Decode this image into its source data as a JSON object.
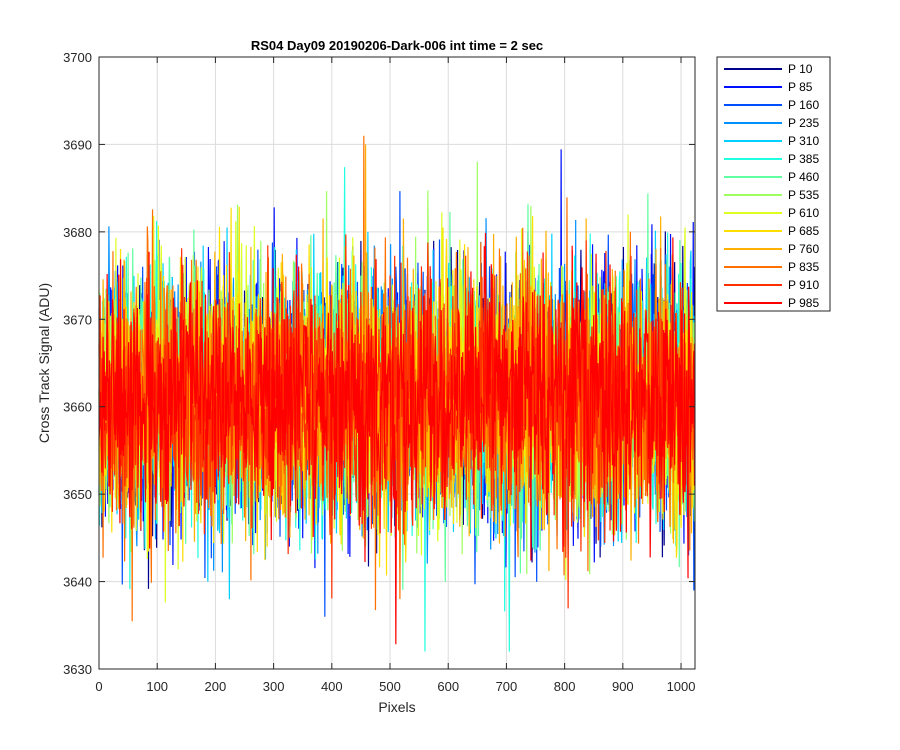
{
  "chart_data": {
    "type": "line",
    "title": "RS04 Day09 20190206-Dark-006 int time = 2 sec",
    "xlabel": "Pixels",
    "ylabel": "Cross Track Signal (ADU)",
    "xlim": [
      0,
      1024
    ],
    "ylim": [
      3630,
      3700
    ],
    "xticks": [
      0,
      100,
      200,
      300,
      400,
      500,
      600,
      700,
      800,
      900,
      1000
    ],
    "yticks": [
      3630,
      3640,
      3650,
      3660,
      3670,
      3680,
      3690,
      3700
    ],
    "grid": true,
    "legend_position": "outside-right",
    "points_per_series": 1024,
    "noise_mean": 3661,
    "noise_sd": 7,
    "series": [
      {
        "name": "P 10",
        "color": "#00008F"
      },
      {
        "name": "P 85",
        "color": "#0010FF"
      },
      {
        "name": "P 160",
        "color": "#0050FF"
      },
      {
        "name": "P 235",
        "color": "#0090FF"
      },
      {
        "name": "P 310",
        "color": "#00CFFF"
      },
      {
        "name": "P 385",
        "color": "#20FFDF"
      },
      {
        "name": "P 460",
        "color": "#60FF9F"
      },
      {
        "name": "P 535",
        "color": "#9FFF60"
      },
      {
        "name": "P 610",
        "color": "#DFFF20"
      },
      {
        "name": "P 685",
        "color": "#FFDF00"
      },
      {
        "name": "P 760",
        "color": "#FFB000"
      },
      {
        "name": "P 835",
        "color": "#FF7000"
      },
      {
        "name": "P 910",
        "color": "#FF3000"
      },
      {
        "name": "P 985",
        "color": "#FF0000"
      }
    ],
    "highlights": [
      {
        "series": "P 835",
        "x": 455,
        "y": 3691
      },
      {
        "series": "P 760",
        "x": 458,
        "y": 3690
      },
      {
        "series": "P 385",
        "x": 705,
        "y": 3632
      },
      {
        "series": "P 385",
        "x": 560,
        "y": 3632
      },
      {
        "series": "P 535",
        "x": 650,
        "y": 3688
      }
    ]
  }
}
